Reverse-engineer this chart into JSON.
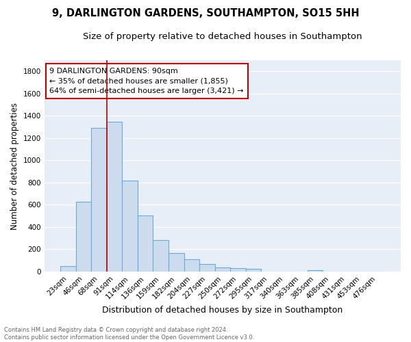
{
  "title1": "9, DARLINGTON GARDENS, SOUTHAMPTON, SO15 5HH",
  "title2": "Size of property relative to detached houses in Southampton",
  "xlabel": "Distribution of detached houses by size in Southampton",
  "ylabel": "Number of detached properties",
  "categories": [
    "23sqm",
    "46sqm",
    "68sqm",
    "91sqm",
    "114sqm",
    "136sqm",
    "159sqm",
    "182sqm",
    "204sqm",
    "227sqm",
    "250sqm",
    "272sqm",
    "295sqm",
    "317sqm",
    "340sqm",
    "363sqm",
    "385sqm",
    "408sqm",
    "431sqm",
    "453sqm",
    "476sqm"
  ],
  "values": [
    50,
    630,
    1290,
    1345,
    820,
    505,
    285,
    165,
    110,
    65,
    35,
    30,
    22,
    0,
    0,
    0,
    15,
    0,
    0,
    0,
    0
  ],
  "bar_color": "#ccdcee",
  "bar_edge_color": "#6aaad4",
  "fig_background": "#ffffff",
  "ax_background": "#e8eef8",
  "grid_color": "#ffffff",
  "vline_color": "#bb0000",
  "vline_x": 2.5,
  "annotation_text": "9 DARLINGTON GARDENS: 90sqm\n← 35% of detached houses are smaller (1,855)\n64% of semi-detached houses are larger (3,421) →",
  "annotation_box_facecolor": "#ffffff",
  "annotation_box_edgecolor": "#bb0000",
  "ylim": [
    0,
    1900
  ],
  "yticks": [
    0,
    200,
    400,
    600,
    800,
    1000,
    1200,
    1400,
    1600,
    1800
  ],
  "footnote": "Contains HM Land Registry data © Crown copyright and database right 2024.\nContains public sector information licensed under the Open Government Licence v3.0.",
  "title1_fontsize": 10.5,
  "title2_fontsize": 9.5,
  "xlabel_fontsize": 9,
  "ylabel_fontsize": 8.5,
  "tick_fontsize": 7.5,
  "annot_fontsize": 8,
  "footnote_fontsize": 6
}
